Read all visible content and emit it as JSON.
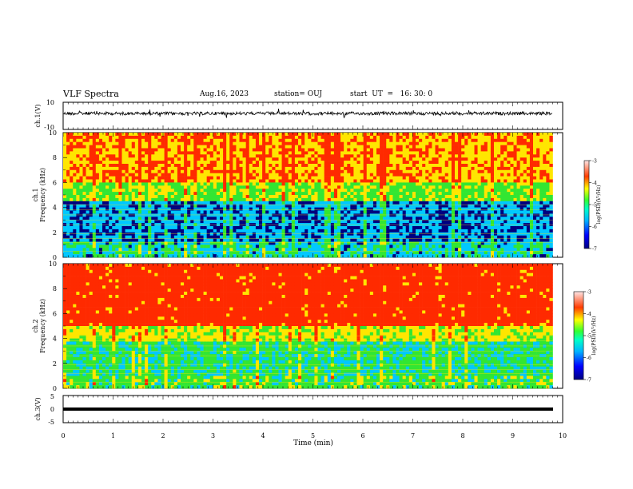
{
  "header": {
    "title": "VLF Spectra",
    "date": "Aug.16, 2023",
    "station": "station= OUJ",
    "start_ut": "start  UT  =   16: 30: 0"
  },
  "chart_data": [
    {
      "type": "line",
      "ylabel": "ch.1(V)",
      "ylim": [
        -10,
        10
      ],
      "yticks": [
        "10",
        "-10"
      ],
      "description_level": 0,
      "xlim": [
        0,
        10
      ]
    },
    {
      "type": "heatmap",
      "ylabel_line1": "ch.1",
      "ylabel_line2": "Frequency (kHz)",
      "ylim": [
        0,
        10
      ],
      "yticks": [
        "0",
        "2",
        "4",
        "6",
        "8",
        "10"
      ],
      "xlim": [
        0,
        9.8
      ],
      "colorbar": {
        "label": "log(PSD)(V²/Hz)",
        "range": [
          -7,
          -3
        ],
        "ticks": [
          "-3",
          "-4",
          "-5",
          "-6",
          "-7"
        ]
      }
    },
    {
      "type": "heatmap",
      "ylabel_line1": "ch.2",
      "ylabel_line2": "Frequency (kHz)",
      "ylim": [
        0,
        10
      ],
      "yticks": [
        "0",
        "2",
        "4",
        "6",
        "8",
        "10"
      ],
      "xlim": [
        0,
        9.8
      ],
      "colorbar": {
        "label": "log(PSD)(V²/Hz)",
        "range": [
          -7,
          -3
        ],
        "ticks": [
          "-3",
          "-4",
          "-5",
          "-6",
          "-7"
        ]
      }
    },
    {
      "type": "line",
      "ylabel": "ch.3(V)",
      "ylim": [
        -5,
        5
      ],
      "yticks": [
        "5",
        "0",
        "-5"
      ],
      "level": -1,
      "xlim": [
        0,
        9.8
      ]
    }
  ],
  "xaxis": {
    "label": "Time (min)",
    "ticks": [
      "0",
      "1",
      "2",
      "3",
      "4",
      "5",
      "6",
      "7",
      "8",
      "9",
      "10"
    ],
    "range": [
      0,
      10
    ]
  },
  "colors": {
    "low": "#00007f",
    "mid": "#00c8ff",
    "green": "#32e632",
    "yellow": "#ffe600",
    "high": "#ff2a00"
  }
}
